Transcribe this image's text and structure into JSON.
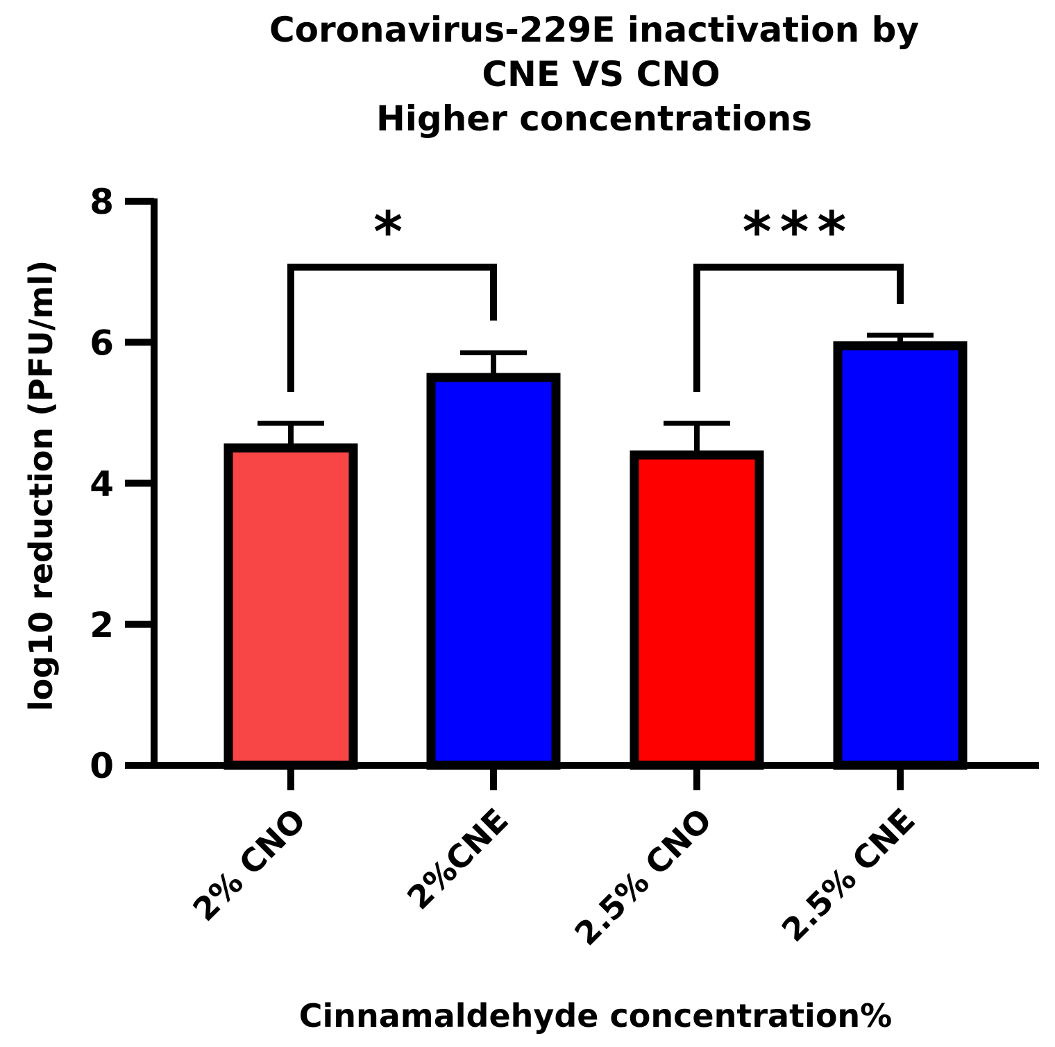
{
  "chart_data": {
    "type": "bar",
    "title_lines": [
      "Coronavirus-229E inactivation by",
      "CNE VS CNO",
      "Higher concentrations"
    ],
    "xlabel": "Cinnamaldehyde concentration%",
    "ylabel": "log10 reduction (PFU/ml)",
    "ylim": [
      0,
      8
    ],
    "yticks": [
      "0",
      "2",
      "4",
      "6",
      "8"
    ],
    "categories": [
      "2% CNO",
      "2%CNE",
      "2.5% CNO",
      "2.5% CNE"
    ],
    "values": [
      4.5,
      5.5,
      4.4,
      5.95
    ],
    "errors": [
      0.35,
      0.35,
      0.45,
      0.15
    ],
    "colors": [
      "#f84545",
      "#0000ff",
      "#ff0000",
      "#0000ff"
    ],
    "significance": [
      {
        "from": 0,
        "to": 1,
        "label": "*"
      },
      {
        "from": 2,
        "to": 3,
        "label": "***"
      }
    ]
  }
}
